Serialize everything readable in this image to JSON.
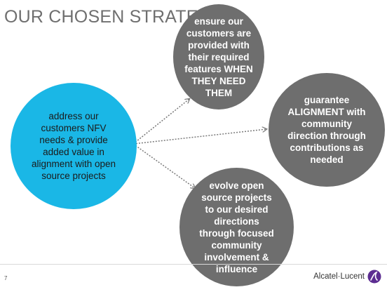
{
  "slide": {
    "title": "OUR CHOSEN STRATEGY?",
    "page_number": "7"
  },
  "center_circle": {
    "text": "address our customers NFV needs & provide added value in alignment with open source projects",
    "color": "#1ab7e6"
  },
  "outcomes": [
    {
      "text": "ensure our customers are provided with their required features WHEN THEY NEED THEM"
    },
    {
      "text": "guarantee ALIGNMENT with community direction through contributions as needed"
    },
    {
      "text": "evolve open source projects to our desired directions through focused community involvement & influence"
    }
  ],
  "outcome_color": "#6e6e6e",
  "logo": {
    "text": "Alcatel·Lucent",
    "mark_color": "#5c2d91",
    "icon": "alcatel-lucent-logo-icon"
  }
}
